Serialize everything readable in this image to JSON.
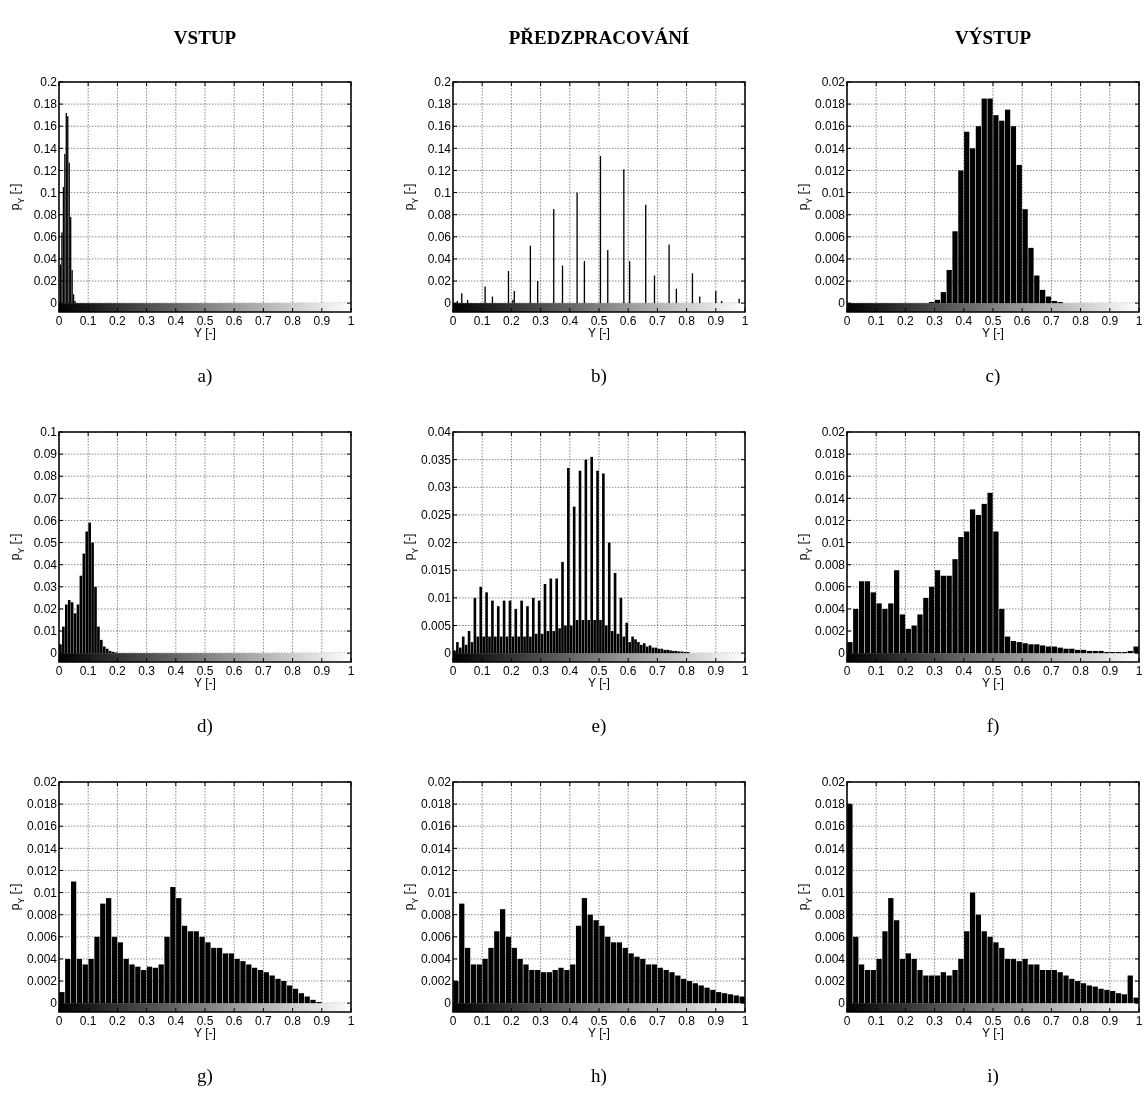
{
  "chart_data": [
    {
      "type": "bar",
      "title": "VSTUP",
      "annotations": [
        "a)"
      ],
      "xlabel": "Y [-]",
      "ylabel": "p$_{Y}$ [-]",
      "grid": true,
      "color": "#000000",
      "xlim": [
        0,
        1
      ],
      "xticks": [
        0,
        0.1,
        0.2,
        0.3,
        0.4,
        0.5,
        0.6,
        0.7,
        0.8,
        0.9,
        1
      ],
      "ylim": [
        -0.008,
        0.2
      ],
      "yticks": [
        0,
        0.02,
        0.04,
        0.06,
        0.08,
        0.1,
        0.12,
        0.14,
        0.16,
        0.18,
        0.2
      ],
      "x": [
        0.005,
        0.01,
        0.015,
        0.02,
        0.025,
        0.03,
        0.035,
        0.04,
        0.045,
        0.05,
        0.055
      ],
      "values": [
        0.035,
        0.064,
        0.105,
        0.135,
        0.172,
        0.169,
        0.127,
        0.078,
        0.03,
        0.008,
        0.002
      ]
    },
    {
      "type": "bar",
      "title": "PŘEDZPRACOVÁNÍ",
      "annotations": [
        "b)"
      ],
      "xlabel": "Y [-]",
      "ylabel": "p$_{Y}$ [-]",
      "grid": true,
      "color": "#000000",
      "xlim": [
        0,
        1
      ],
      "xticks": [
        0,
        0.1,
        0.2,
        0.3,
        0.4,
        0.5,
        0.6,
        0.7,
        0.8,
        0.9,
        1
      ],
      "ylim": [
        -0.008,
        0.2
      ],
      "yticks": [
        0,
        0.02,
        0.04,
        0.06,
        0.08,
        0.1,
        0.12,
        0.14,
        0.16,
        0.18,
        0.2
      ],
      "x": [
        0.015,
        0.03,
        0.05,
        0.11,
        0.135,
        0.19,
        0.205,
        0.21,
        0.265,
        0.29,
        0.345,
        0.375,
        0.425,
        0.45,
        0.505,
        0.53,
        0.585,
        0.605,
        0.66,
        0.69,
        0.74,
        0.765,
        0.82,
        0.845,
        0.9,
        0.92,
        0.98
      ],
      "values": [
        0.002,
        0.009,
        0.003,
        0.015,
        0.006,
        0.029,
        0.003,
        0.011,
        0.052,
        0.02,
        0.085,
        0.034,
        0.1,
        0.038,
        0.133,
        0.048,
        0.121,
        0.038,
        0.089,
        0.025,
        0.053,
        0.013,
        0.027,
        0.006,
        0.011,
        0.002,
        0.004
      ]
    },
    {
      "type": "bar",
      "title": "VÝSTUP",
      "annotations": [
        "c)"
      ],
      "xlabel": "Y [-]",
      "ylabel": "p$_{Y}$ [-]",
      "grid": true,
      "color": "#000000",
      "xlim": [
        0,
        1
      ],
      "xticks": [
        0,
        0.1,
        0.2,
        0.3,
        0.4,
        0.5,
        0.6,
        0.7,
        0.8,
        0.9,
        1
      ],
      "ylim": [
        -0.0008,
        0.02
      ],
      "yticks": [
        0,
        0.002,
        0.004,
        0.006,
        0.008,
        0.01,
        0.012,
        0.014,
        0.016,
        0.018,
        0.02
      ],
      "x": [
        0.29,
        0.31,
        0.33,
        0.35,
        0.37,
        0.39,
        0.41,
        0.43,
        0.45,
        0.47,
        0.49,
        0.51,
        0.53,
        0.55,
        0.57,
        0.59,
        0.61,
        0.63,
        0.65,
        0.67,
        0.69,
        0.71,
        0.73
      ],
      "values": [
        0.0001,
        0.0003,
        0.001,
        0.003,
        0.0065,
        0.012,
        0.0155,
        0.014,
        0.016,
        0.0185,
        0.0185,
        0.017,
        0.0165,
        0.0175,
        0.016,
        0.0125,
        0.0085,
        0.005,
        0.0025,
        0.0012,
        0.0006,
        0.0002,
        0.0001
      ]
    },
    {
      "type": "bar",
      "annotations": [
        "d)"
      ],
      "xlabel": "Y [-]",
      "ylabel": "p$_{Y}$ [-]",
      "grid": true,
      "color": "#000000",
      "xlim": [
        0,
        1
      ],
      "xticks": [
        0,
        0.1,
        0.2,
        0.3,
        0.4,
        0.5,
        0.6,
        0.7,
        0.8,
        0.9,
        1
      ],
      "ylim": [
        -0.004,
        0.1
      ],
      "yticks": [
        0,
        0.01,
        0.02,
        0.03,
        0.04,
        0.05,
        0.06,
        0.07,
        0.08,
        0.09,
        0.1
      ],
      "x": [
        0.005,
        0.015,
        0.025,
        0.035,
        0.045,
        0.055,
        0.065,
        0.075,
        0.085,
        0.095,
        0.105,
        0.115,
        0.125,
        0.135,
        0.145,
        0.155,
        0.165,
        0.175,
        0.185,
        0.195
      ],
      "values": [
        0.004,
        0.012,
        0.022,
        0.024,
        0.023,
        0.018,
        0.022,
        0.035,
        0.045,
        0.055,
        0.059,
        0.05,
        0.03,
        0.012,
        0.006,
        0.003,
        0.002,
        0.001,
        0.0006,
        0.0003
      ]
    },
    {
      "type": "bar",
      "annotations": [
        "e)"
      ],
      "xlabel": "Y [-]",
      "ylabel": "p$_{Y}$ [-]",
      "grid": true,
      "color": "#000000",
      "xlim": [
        0,
        1
      ],
      "xticks": [
        0,
        0.1,
        0.2,
        0.3,
        0.4,
        0.5,
        0.6,
        0.7,
        0.8,
        0.9,
        1
      ],
      "ylim": [
        -0.0016,
        0.04
      ],
      "yticks": [
        0,
        0.005,
        0.01,
        0.015,
        0.02,
        0.025,
        0.03,
        0.035,
        0.04
      ],
      "x": [
        0.005,
        0.015,
        0.025,
        0.035,
        0.045,
        0.055,
        0.065,
        0.075,
        0.085,
        0.095,
        0.105,
        0.115,
        0.125,
        0.135,
        0.145,
        0.155,
        0.165,
        0.175,
        0.185,
        0.195,
        0.205,
        0.215,
        0.225,
        0.235,
        0.245,
        0.255,
        0.265,
        0.275,
        0.285,
        0.295,
        0.305,
        0.315,
        0.325,
        0.335,
        0.345,
        0.355,
        0.365,
        0.375,
        0.385,
        0.395,
        0.405,
        0.415,
        0.425,
        0.435,
        0.445,
        0.455,
        0.465,
        0.475,
        0.485,
        0.495,
        0.505,
        0.515,
        0.525,
        0.535,
        0.545,
        0.555,
        0.565,
        0.575,
        0.585,
        0.595,
        0.605,
        0.615,
        0.625,
        0.635,
        0.645,
        0.655,
        0.665,
        0.675,
        0.685,
        0.695,
        0.705,
        0.715,
        0.725,
        0.735,
        0.745,
        0.755,
        0.765,
        0.775,
        0.785,
        0.795,
        0.805
      ],
      "values": [
        0.0005,
        0.002,
        0.001,
        0.003,
        0.0015,
        0.004,
        0.002,
        0.01,
        0.003,
        0.012,
        0.003,
        0.011,
        0.003,
        0.0095,
        0.003,
        0.0085,
        0.003,
        0.0095,
        0.003,
        0.0095,
        0.003,
        0.008,
        0.003,
        0.0095,
        0.003,
        0.0085,
        0.003,
        0.01,
        0.0035,
        0.0095,
        0.0035,
        0.0125,
        0.004,
        0.0135,
        0.004,
        0.0135,
        0.0045,
        0.0165,
        0.005,
        0.0335,
        0.005,
        0.0265,
        0.006,
        0.033,
        0.006,
        0.035,
        0.006,
        0.0355,
        0.006,
        0.033,
        0.006,
        0.0325,
        0.005,
        0.02,
        0.004,
        0.0145,
        0.0035,
        0.01,
        0.003,
        0.0055,
        0.002,
        0.003,
        0.0025,
        0.002,
        0.0015,
        0.0018,
        0.0012,
        0.0014,
        0.001,
        0.001,
        0.0008,
        0.0008,
        0.0006,
        0.0006,
        0.0005,
        0.0004,
        0.0004,
        0.0003,
        0.0003,
        0.0002,
        0.0002
      ]
    },
    {
      "type": "bar",
      "annotations": [
        "f)"
      ],
      "xlabel": "Y [-]",
      "ylabel": "p$_{Y}$ [-]",
      "grid": true,
      "color": "#000000",
      "xlim": [
        0,
        1
      ],
      "xticks": [
        0,
        0.1,
        0.2,
        0.3,
        0.4,
        0.5,
        0.6,
        0.7,
        0.8,
        0.9,
        1
      ],
      "ylim": [
        -0.0008,
        0.02
      ],
      "yticks": [
        0,
        0.002,
        0.004,
        0.006,
        0.008,
        0.01,
        0.012,
        0.014,
        0.016,
        0.018,
        0.02
      ],
      "x": [
        0.01,
        0.03,
        0.05,
        0.07,
        0.09,
        0.11,
        0.13,
        0.15,
        0.17,
        0.19,
        0.21,
        0.23,
        0.25,
        0.27,
        0.29,
        0.31,
        0.33,
        0.35,
        0.37,
        0.39,
        0.41,
        0.43,
        0.45,
        0.47,
        0.49,
        0.51,
        0.53,
        0.55,
        0.57,
        0.59,
        0.61,
        0.63,
        0.65,
        0.67,
        0.69,
        0.71,
        0.73,
        0.75,
        0.77,
        0.79,
        0.81,
        0.83,
        0.85,
        0.87,
        0.89,
        0.91,
        0.93,
        0.95,
        0.97,
        0.99
      ],
      "values": [
        0.001,
        0.004,
        0.0065,
        0.0065,
        0.0055,
        0.0045,
        0.004,
        0.0045,
        0.0075,
        0.0035,
        0.0022,
        0.0025,
        0.0035,
        0.005,
        0.006,
        0.0075,
        0.007,
        0.007,
        0.0085,
        0.0105,
        0.011,
        0.013,
        0.0125,
        0.0135,
        0.0145,
        0.011,
        0.004,
        0.0015,
        0.0011,
        0.001,
        0.0009,
        0.0008,
        0.0008,
        0.0007,
        0.0006,
        0.0006,
        0.0005,
        0.0004,
        0.0004,
        0.0003,
        0.0003,
        0.0002,
        0.0002,
        0.0002,
        0.0001,
        0.0001,
        0.0001,
        0.0001,
        0.0002,
        0.0006
      ]
    },
    {
      "type": "bar",
      "annotations": [
        "g)"
      ],
      "xlabel": "Y [-]",
      "ylabel": "p$_{Y}$ [-]",
      "grid": true,
      "color": "#000000",
      "xlim": [
        0,
        1
      ],
      "xticks": [
        0,
        0.1,
        0.2,
        0.3,
        0.4,
        0.5,
        0.6,
        0.7,
        0.8,
        0.9,
        1
      ],
      "ylim": [
        -0.0008,
        0.02
      ],
      "yticks": [
        0,
        0.002,
        0.004,
        0.006,
        0.008,
        0.01,
        0.012,
        0.014,
        0.016,
        0.018,
        0.02
      ],
      "x": [
        0.01,
        0.03,
        0.05,
        0.07,
        0.09,
        0.11,
        0.13,
        0.15,
        0.17,
        0.19,
        0.21,
        0.23,
        0.25,
        0.27,
        0.29,
        0.31,
        0.33,
        0.35,
        0.37,
        0.39,
        0.41,
        0.43,
        0.45,
        0.47,
        0.49,
        0.51,
        0.53,
        0.55,
        0.57,
        0.59,
        0.61,
        0.63,
        0.65,
        0.67,
        0.69,
        0.71,
        0.73,
        0.75,
        0.77,
        0.79,
        0.81,
        0.83,
        0.85,
        0.87,
        0.89
      ],
      "values": [
        0.001,
        0.004,
        0.011,
        0.004,
        0.0035,
        0.004,
        0.006,
        0.009,
        0.0095,
        0.006,
        0.0055,
        0.004,
        0.0035,
        0.0033,
        0.003,
        0.0033,
        0.0032,
        0.0035,
        0.006,
        0.0105,
        0.0095,
        0.007,
        0.0065,
        0.0065,
        0.006,
        0.0055,
        0.005,
        0.005,
        0.0045,
        0.0045,
        0.004,
        0.0038,
        0.0035,
        0.0032,
        0.003,
        0.0028,
        0.0025,
        0.0022,
        0.002,
        0.0016,
        0.0013,
        0.0009,
        0.0006,
        0.0003,
        0.0001
      ]
    },
    {
      "type": "bar",
      "annotations": [
        "h)"
      ],
      "xlabel": "Y [-]",
      "ylabel": "p$_{Y}$ [-]",
      "grid": true,
      "color": "#000000",
      "xlim": [
        0,
        1
      ],
      "xticks": [
        0,
        0.1,
        0.2,
        0.3,
        0.4,
        0.5,
        0.6,
        0.7,
        0.8,
        0.9,
        1
      ],
      "ylim": [
        -0.0008,
        0.02
      ],
      "yticks": [
        0,
        0.002,
        0.004,
        0.006,
        0.008,
        0.01,
        0.012,
        0.014,
        0.016,
        0.018,
        0.02
      ],
      "x": [
        0.01,
        0.03,
        0.05,
        0.07,
        0.09,
        0.11,
        0.13,
        0.15,
        0.17,
        0.19,
        0.21,
        0.23,
        0.25,
        0.27,
        0.29,
        0.31,
        0.33,
        0.35,
        0.37,
        0.39,
        0.41,
        0.43,
        0.45,
        0.47,
        0.49,
        0.51,
        0.53,
        0.55,
        0.57,
        0.59,
        0.61,
        0.63,
        0.65,
        0.67,
        0.69,
        0.71,
        0.73,
        0.75,
        0.77,
        0.79,
        0.81,
        0.83,
        0.85,
        0.87,
        0.89,
        0.91,
        0.93,
        0.95,
        0.97,
        0.99
      ],
      "values": [
        0.002,
        0.009,
        0.005,
        0.0035,
        0.0035,
        0.004,
        0.005,
        0.0065,
        0.0085,
        0.006,
        0.005,
        0.004,
        0.0035,
        0.003,
        0.003,
        0.0028,
        0.0028,
        0.003,
        0.0032,
        0.003,
        0.0035,
        0.007,
        0.0095,
        0.008,
        0.0075,
        0.007,
        0.006,
        0.0055,
        0.0055,
        0.005,
        0.0045,
        0.0042,
        0.004,
        0.0035,
        0.0035,
        0.0032,
        0.003,
        0.0028,
        0.0025,
        0.0022,
        0.002,
        0.0018,
        0.0016,
        0.0014,
        0.0012,
        0.001,
        0.0009,
        0.0008,
        0.0007,
        0.0006
      ]
    },
    {
      "type": "bar",
      "annotations": [
        "i)"
      ],
      "xlabel": "Y [-]",
      "ylabel": "p$_{Y}$ [-]",
      "grid": true,
      "color": "#000000",
      "xlim": [
        0,
        1
      ],
      "xticks": [
        0,
        0.1,
        0.2,
        0.3,
        0.4,
        0.5,
        0.6,
        0.7,
        0.8,
        0.9,
        1
      ],
      "ylim": [
        -0.0008,
        0.02
      ],
      "yticks": [
        0,
        0.002,
        0.004,
        0.006,
        0.008,
        0.01,
        0.012,
        0.014,
        0.016,
        0.018,
        0.02
      ],
      "x": [
        0.01,
        0.03,
        0.05,
        0.07,
        0.09,
        0.11,
        0.13,
        0.15,
        0.17,
        0.19,
        0.21,
        0.23,
        0.25,
        0.27,
        0.29,
        0.31,
        0.33,
        0.35,
        0.37,
        0.39,
        0.41,
        0.43,
        0.45,
        0.47,
        0.49,
        0.51,
        0.53,
        0.55,
        0.57,
        0.59,
        0.61,
        0.63,
        0.65,
        0.67,
        0.69,
        0.71,
        0.73,
        0.75,
        0.77,
        0.79,
        0.81,
        0.83,
        0.85,
        0.87,
        0.89,
        0.91,
        0.93,
        0.95,
        0.97,
        0.99
      ],
      "values": [
        0.018,
        0.006,
        0.0035,
        0.003,
        0.003,
        0.004,
        0.0065,
        0.0095,
        0.0075,
        0.004,
        0.0045,
        0.004,
        0.003,
        0.0025,
        0.0025,
        0.0025,
        0.0028,
        0.0025,
        0.003,
        0.004,
        0.0065,
        0.01,
        0.008,
        0.0065,
        0.006,
        0.0055,
        0.005,
        0.004,
        0.004,
        0.0038,
        0.004,
        0.0035,
        0.0035,
        0.003,
        0.003,
        0.003,
        0.0028,
        0.0025,
        0.0022,
        0.002,
        0.0018,
        0.0016,
        0.0015,
        0.0013,
        0.0012,
        0.0011,
        0.0009,
        0.0008,
        0.0025,
        0.0005
      ]
    }
  ]
}
